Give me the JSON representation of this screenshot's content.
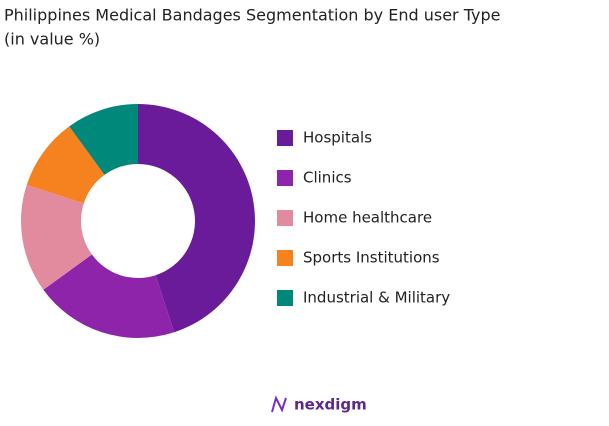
{
  "chart_data": {
    "type": "donut",
    "title": "Philippines Medical Bandages Segmentation by End user Type",
    "subtitle": "(in value %)",
    "categories": [
      "Hospitals",
      "Clinics",
      "Home healthcare",
      "Sports Institutions",
      "Industrial & Military"
    ],
    "values": [
      45,
      20,
      15,
      10,
      10
    ],
    "colors": [
      "#6a1b9a",
      "#8e24aa",
      "#e28a9e",
      "#f5821f",
      "#00897b"
    ],
    "watermark": "nexdigm"
  }
}
